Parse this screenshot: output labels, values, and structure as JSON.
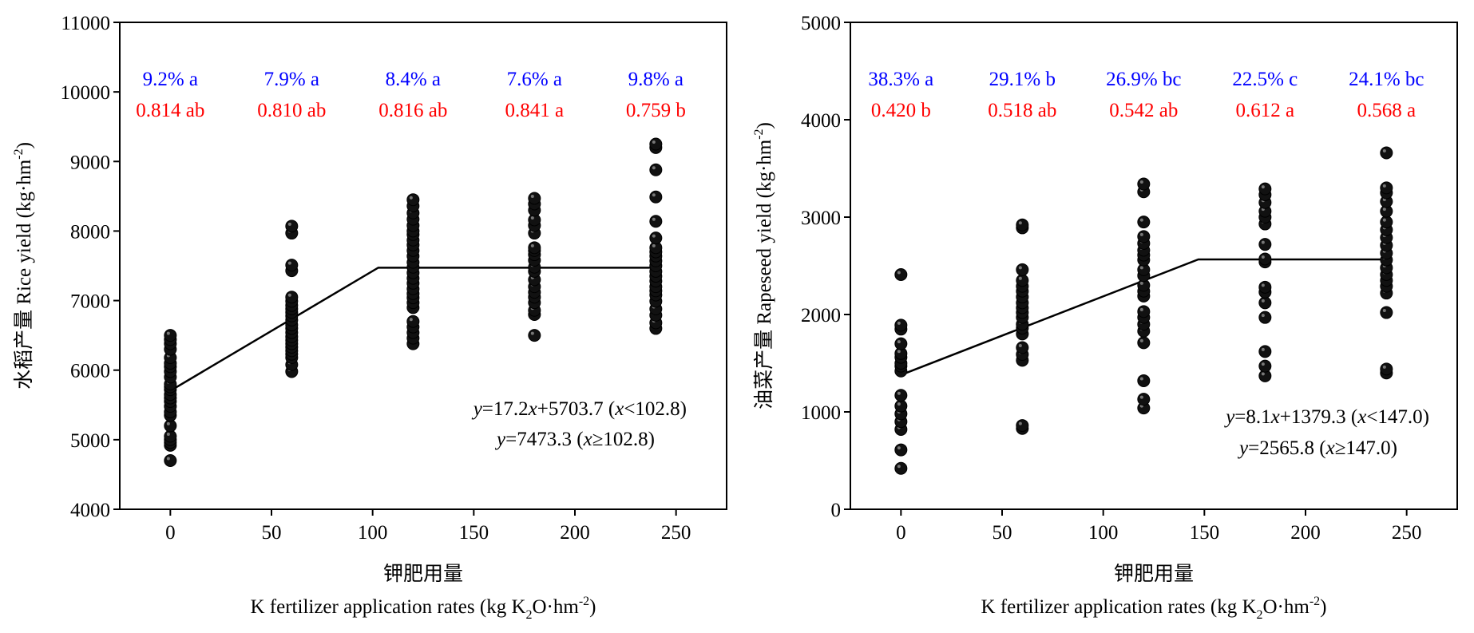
{
  "chart_data": [
    {
      "type": "scatter",
      "xlabel_cn": "钾肥用量",
      "xlabel_en": "K fertilizer application rates (kg K",
      "xlabel_sub": "2",
      "xlabel_mid": "O·hm",
      "xlabel_sup": "-2",
      "xlabel_end": ")",
      "ylabel": "水稻产量 Rice yield (kg·hm",
      "ylabel_sup": "-2",
      "ylabel_end": ")",
      "xlim": [
        -25,
        275
      ],
      "ylim": [
        4000,
        11000
      ],
      "xticks": [
        "0",
        "50",
        "100",
        "150",
        "200",
        "250"
      ],
      "xtick_values": [
        0,
        50,
        100,
        150,
        200,
        250
      ],
      "yticks": [
        "4000",
        "5000",
        "6000",
        "7000",
        "8000",
        "9000",
        "10000",
        "11000"
      ],
      "ytick_values": [
        4000,
        5000,
        6000,
        7000,
        8000,
        9000,
        10000,
        11000
      ],
      "annotations_blue": [
        "9.2% a",
        "7.9% a",
        "8.4% a",
        "7.6% a",
        "9.8% a"
      ],
      "annotations_red": [
        "0.814 ab",
        "0.810 ab",
        "0.816 ab",
        "0.841 a",
        "0.759 b"
      ],
      "annotation_x": [
        0,
        60,
        120,
        180,
        240
      ],
      "equation_line1": "y=17.2x+5703.7 (x<102.8)",
      "equation_line2": "y=7473.3 (x≥102.8)",
      "fit_line": [
        [
          0,
          5703.7
        ],
        [
          102.8,
          7473.3
        ],
        [
          240,
          7473.3
        ]
      ],
      "series": [
        {
          "x": 0,
          "values": [
            4700,
            4920,
            4960,
            5000,
            5050,
            5200,
            5350,
            5400,
            5480,
            5550,
            5600,
            5650,
            5720,
            5760,
            5800,
            5900,
            5980,
            6050,
            6100,
            6180,
            6300,
            6380,
            6440,
            6500
          ]
        },
        {
          "x": 60,
          "values": [
            5980,
            6080,
            6180,
            6230,
            6280,
            6330,
            6380,
            6430,
            6480,
            6540,
            6600,
            6650,
            6720,
            6780,
            6830,
            6880,
            6930,
            6990,
            7050,
            7430,
            7510,
            7970,
            8070
          ]
        },
        {
          "x": 120,
          "values": [
            6380,
            6460,
            6540,
            6620,
            6700,
            6900,
            6970,
            7040,
            7100,
            7170,
            7250,
            7320,
            7400,
            7480,
            7550,
            7640,
            7720,
            7800,
            7870,
            7950,
            8000,
            8080,
            8170,
            8260,
            8360,
            8450
          ]
        },
        {
          "x": 180,
          "values": [
            6500,
            6800,
            6860,
            6970,
            7050,
            7120,
            7200,
            7300,
            7420,
            7480,
            7580,
            7660,
            7720,
            7760,
            7970,
            8080,
            8160,
            8300,
            8390,
            8470
          ]
        },
        {
          "x": 240,
          "values": [
            6600,
            6680,
            6790,
            6880,
            6990,
            7080,
            7140,
            7200,
            7280,
            7350,
            7420,
            7500,
            7570,
            7640,
            7700,
            7760,
            7900,
            8140,
            8490,
            8880,
            9200,
            9250
          ]
        }
      ]
    },
    {
      "type": "scatter",
      "xlabel_cn": "钾肥用量",
      "xlabel_en": "K fertilizer application rates (kg K",
      "xlabel_sub": "2",
      "xlabel_mid": "O·hm",
      "xlabel_sup": "-2",
      "xlabel_end": ")",
      "ylabel": "油菜产量 Rapeseed yield (kg·hm",
      "ylabel_sup": "-2",
      "ylabel_end": ")",
      "xlim": [
        -25,
        275
      ],
      "ylim": [
        0,
        5000
      ],
      "xticks": [
        "0",
        "50",
        "100",
        "150",
        "200",
        "250"
      ],
      "xtick_values": [
        0,
        50,
        100,
        150,
        200,
        250
      ],
      "yticks": [
        "0",
        "1000",
        "2000",
        "3000",
        "4000",
        "5000"
      ],
      "ytick_values": [
        0,
        1000,
        2000,
        3000,
        4000,
        5000
      ],
      "annotations_blue": [
        "38.3% a",
        "29.1% b",
        "26.9% bc",
        "22.5% c",
        "24.1% bc"
      ],
      "annotations_red": [
        "0.420 b",
        "0.518 ab",
        "0.542 ab",
        "0.612 a",
        "0.568 a"
      ],
      "annotation_x": [
        0,
        60,
        120,
        180,
        240
      ],
      "equation_line1": "y=8.1x+1379.3 (x<147.0)",
      "equation_line2": "y=2565.8 (x≥147.0)",
      "fit_line": [
        [
          0,
          1379.3
        ],
        [
          147.0,
          2565.8
        ],
        [
          240,
          2565.8
        ]
      ],
      "series": [
        {
          "x": 0,
          "values": [
            420,
            610,
            820,
            900,
            980,
            1060,
            1170,
            1420,
            1470,
            1500,
            1560,
            1600,
            1700,
            1850,
            1890,
            2410
          ]
        },
        {
          "x": 60,
          "values": [
            830,
            860,
            1530,
            1590,
            1660,
            1800,
            1860,
            1900,
            1970,
            2020,
            2070,
            2120,
            2180,
            2240,
            2290,
            2350,
            2460,
            2890,
            2920
          ]
        },
        {
          "x": 120,
          "values": [
            1040,
            1130,
            1320,
            1710,
            1830,
            1900,
            1970,
            2030,
            2190,
            2240,
            2300,
            2400,
            2460,
            2560,
            2610,
            2660,
            2730,
            2800,
            2950,
            3260,
            3340
          ]
        },
        {
          "x": 180,
          "values": [
            1370,
            1470,
            1620,
            1970,
            2120,
            2230,
            2280,
            2540,
            2570,
            2720,
            2930,
            3000,
            3060,
            3150,
            3230,
            3290
          ]
        },
        {
          "x": 240,
          "values": [
            1400,
            1440,
            2020,
            2220,
            2290,
            2350,
            2410,
            2480,
            2560,
            2630,
            2710,
            2790,
            2870,
            2950,
            3060,
            3160,
            3250,
            3300,
            3660
          ]
        }
      ]
    }
  ]
}
